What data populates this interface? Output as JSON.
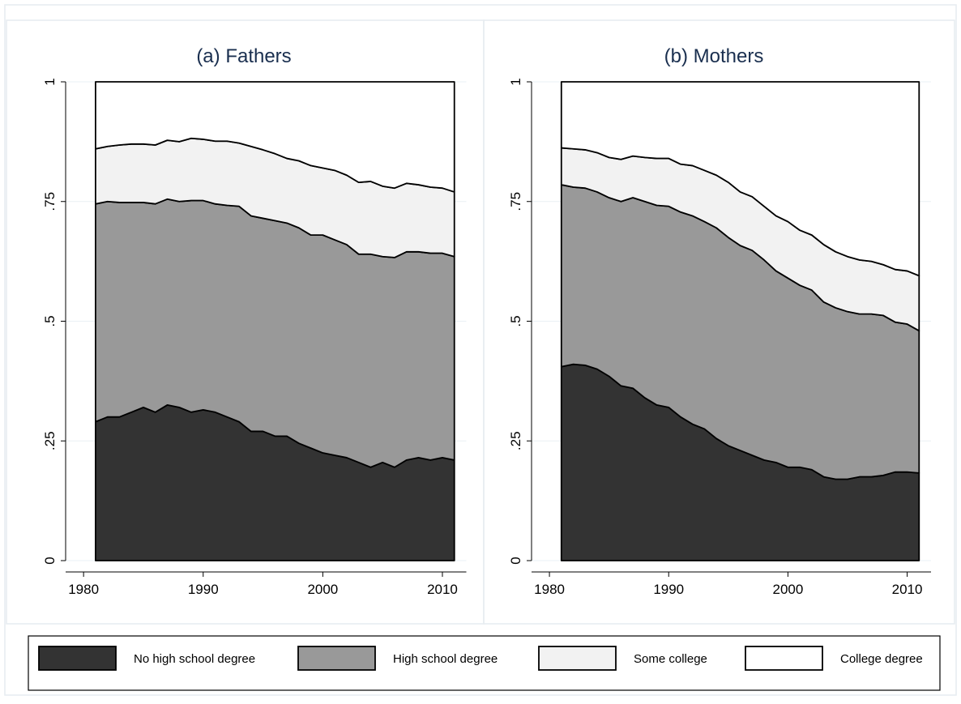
{
  "chart_data": [
    {
      "type": "area",
      "title": "(a) Fathers",
      "x": [
        1981,
        1982,
        1983,
        1984,
        1985,
        1986,
        1987,
        1988,
        1989,
        1990,
        1991,
        1992,
        1993,
        1994,
        1995,
        1996,
        1997,
        1998,
        1999,
        2000,
        2001,
        2002,
        2003,
        2004,
        2005,
        2006,
        2007,
        2008,
        2009,
        2010,
        2011
      ],
      "series": [
        {
          "name": "No high school degree",
          "color": "#333333",
          "values": [
            0.29,
            0.3,
            0.3,
            0.31,
            0.32,
            0.31,
            0.325,
            0.32,
            0.31,
            0.315,
            0.31,
            0.3,
            0.29,
            0.27,
            0.27,
            0.26,
            0.26,
            0.245,
            0.235,
            0.225,
            0.22,
            0.215,
            0.205,
            0.195,
            0.205,
            0.195,
            0.21,
            0.215,
            0.21,
            0.215,
            0.21
          ]
        },
        {
          "name": "High school degree",
          "color": "#999999",
          "values": [
            0.455,
            0.45,
            0.448,
            0.438,
            0.428,
            0.435,
            0.43,
            0.43,
            0.442,
            0.437,
            0.435,
            0.442,
            0.45,
            0.45,
            0.445,
            0.45,
            0.445,
            0.45,
            0.445,
            0.455,
            0.45,
            0.445,
            0.435,
            0.445,
            0.43,
            0.438,
            0.435,
            0.43,
            0.432,
            0.427,
            0.425
          ]
        },
        {
          "name": "Some college",
          "color": "#f2f2f2",
          "values": [
            0.115,
            0.115,
            0.12,
            0.122,
            0.122,
            0.123,
            0.123,
            0.125,
            0.13,
            0.128,
            0.131,
            0.134,
            0.132,
            0.145,
            0.143,
            0.14,
            0.135,
            0.14,
            0.145,
            0.14,
            0.145,
            0.145,
            0.15,
            0.152,
            0.147,
            0.145,
            0.143,
            0.14,
            0.138,
            0.136,
            0.135
          ]
        },
        {
          "name": "College degree",
          "color": "#ffffff",
          "values": [
            0.14,
            0.135,
            0.132,
            0.13,
            0.13,
            0.132,
            0.122,
            0.125,
            0.118,
            0.12,
            0.124,
            0.124,
            0.128,
            0.135,
            0.142,
            0.15,
            0.16,
            0.165,
            0.175,
            0.18,
            0.185,
            0.195,
            0.21,
            0.208,
            0.218,
            0.222,
            0.212,
            0.215,
            0.22,
            0.222,
            0.23
          ]
        }
      ],
      "xlim": [
        1978.5,
        2012
      ],
      "xticks": [
        1980,
        1990,
        2000,
        2010
      ],
      "ylim": [
        0,
        1
      ],
      "yticks": [
        0,
        {
          "value": 0.25,
          "label": ".25"
        },
        {
          "value": 0.5,
          "label": ".5"
        },
        {
          "value": 0.75,
          "label": ".75"
        },
        1
      ],
      "legend": "bottom"
    },
    {
      "type": "area",
      "title": "(b) Mothers",
      "x": [
        1981,
        1982,
        1983,
        1984,
        1985,
        1986,
        1987,
        1988,
        1989,
        1990,
        1991,
        1992,
        1993,
        1994,
        1995,
        1996,
        1997,
        1998,
        1999,
        2000,
        2001,
        2002,
        2003,
        2004,
        2005,
        2006,
        2007,
        2008,
        2009,
        2010,
        2011
      ],
      "series": [
        {
          "color": "#333333",
          "values": [
            0.405,
            0.41,
            0.408,
            0.4,
            0.385,
            0.365,
            0.36,
            0.34,
            0.325,
            0.32,
            0.3,
            0.285,
            0.275,
            0.255,
            0.24,
            0.23,
            0.22,
            0.21,
            0.205,
            0.195,
            0.195,
            0.19,
            0.175,
            0.17,
            0.17,
            0.175,
            0.175,
            0.178,
            0.185,
            0.185,
            0.183
          ]
        },
        {
          "color": "#999999",
          "values": [
            0.38,
            0.37,
            0.37,
            0.37,
            0.373,
            0.385,
            0.398,
            0.41,
            0.417,
            0.42,
            0.428,
            0.435,
            0.433,
            0.44,
            0.435,
            0.428,
            0.428,
            0.418,
            0.4,
            0.395,
            0.38,
            0.375,
            0.365,
            0.358,
            0.35,
            0.34,
            0.34,
            0.334,
            0.313,
            0.309,
            0.297
          ]
        },
        {
          "color": "#f2f2f2",
          "values": [
            0.077,
            0.08,
            0.08,
            0.082,
            0.084,
            0.088,
            0.087,
            0.092,
            0.098,
            0.1,
            0.1,
            0.105,
            0.107,
            0.11,
            0.115,
            0.112,
            0.112,
            0.112,
            0.115,
            0.118,
            0.115,
            0.115,
            0.12,
            0.117,
            0.115,
            0.113,
            0.11,
            0.106,
            0.11,
            0.111,
            0.115
          ]
        },
        {
          "color": "#ffffff",
          "values": [
            0.138,
            0.14,
            0.142,
            0.148,
            0.158,
            0.162,
            0.155,
            0.158,
            0.16,
            0.16,
            0.172,
            0.175,
            0.185,
            0.195,
            0.21,
            0.23,
            0.24,
            0.26,
            0.28,
            0.292,
            0.31,
            0.32,
            0.34,
            0.355,
            0.365,
            0.372,
            0.375,
            0.382,
            0.392,
            0.395,
            0.405
          ]
        }
      ],
      "xlim": [
        1978.5,
        2012
      ],
      "xticks": [
        1980,
        1990,
        2000,
        2010
      ],
      "ylim": [
        0,
        1
      ],
      "yticks": [
        0,
        {
          "value": 0.25,
          "label": ".25"
        },
        {
          "value": 0.5,
          "label": ".5"
        },
        {
          "value": 0.75,
          "label": ".75"
        },
        1
      ]
    }
  ]
}
